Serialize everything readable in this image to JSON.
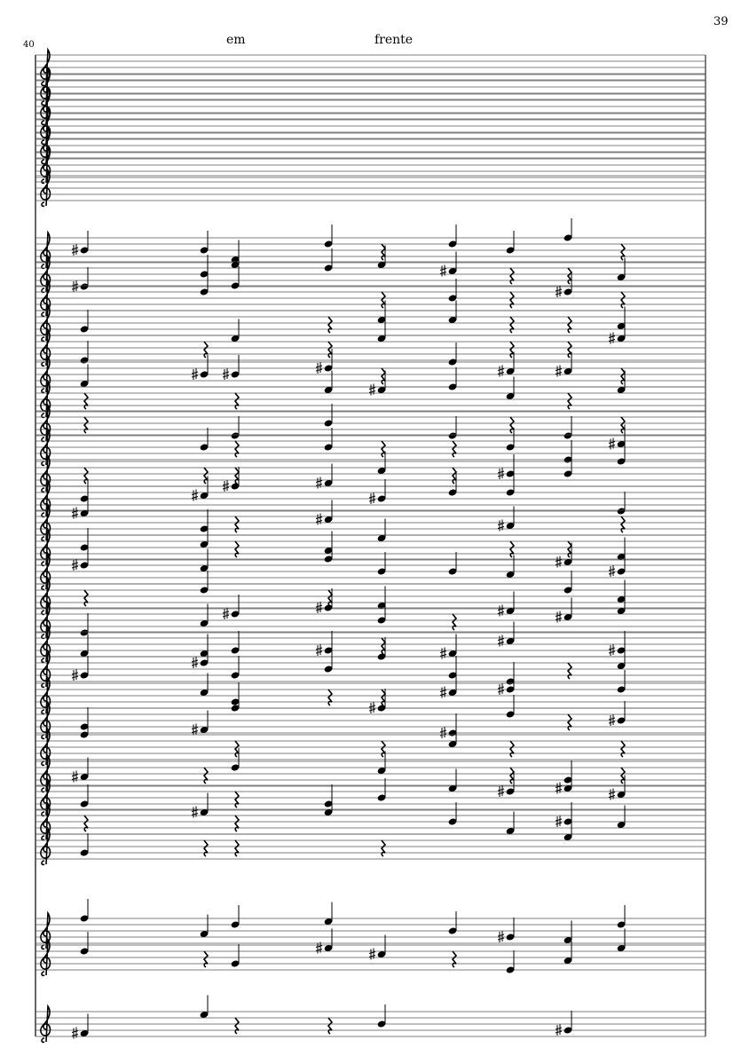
{
  "page": {
    "page_number": "39",
    "measure_number": "40",
    "text_marks": [
      "em",
      "frente"
    ]
  },
  "score": {
    "clef": "treble-clef-icon",
    "ink_color": "#000000",
    "staff_line_color": "#555555"
  }
}
